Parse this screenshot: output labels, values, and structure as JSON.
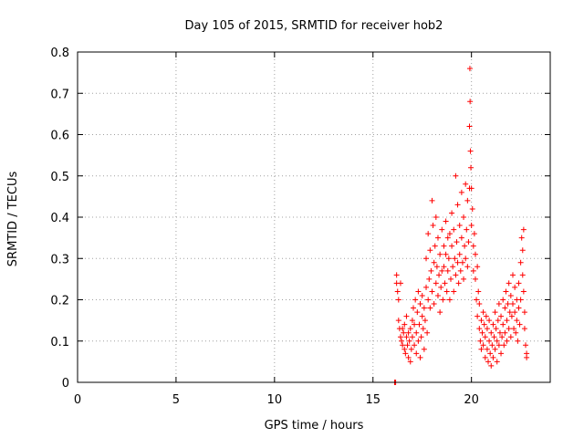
{
  "chart_data": {
    "type": "scatter",
    "title": "Day 105 of 2015, SRMTID for receiver hob2",
    "xlabel": "GPS time / hours",
    "ylabel": "SRMTID / TECUs",
    "xlim": [
      0,
      24
    ],
    "ylim": [
      0,
      0.8
    ],
    "xticks": [
      "0",
      "5",
      "10",
      "15",
      "20"
    ],
    "yticks": [
      "0",
      "0.1",
      "0.2",
      "0.3",
      "0.4",
      "0.5",
      "0.6",
      "0.7",
      "0.8"
    ],
    "grid": true,
    "marker": "+",
    "color": "#ff0000",
    "series": [
      {
        "name": "SRMTID",
        "points": [
          [
            16.1,
            0.0
          ],
          [
            16.15,
            0.0
          ],
          [
            16.2,
            0.24
          ],
          [
            16.2,
            0.26
          ],
          [
            16.25,
            0.22
          ],
          [
            16.3,
            0.2
          ],
          [
            16.3,
            0.15
          ],
          [
            16.35,
            0.13
          ],
          [
            16.4,
            0.24
          ],
          [
            16.4,
            0.11
          ],
          [
            16.45,
            0.1
          ],
          [
            16.5,
            0.13
          ],
          [
            16.5,
            0.09
          ],
          [
            16.55,
            0.12
          ],
          [
            16.6,
            0.08
          ],
          [
            16.6,
            0.14
          ],
          [
            16.65,
            0.07
          ],
          [
            16.7,
            0.11
          ],
          [
            16.7,
            0.16
          ],
          [
            16.75,
            0.09
          ],
          [
            16.8,
            0.06
          ],
          [
            16.8,
            0.12
          ],
          [
            16.85,
            0.1
          ],
          [
            16.9,
            0.05
          ],
          [
            16.9,
            0.13
          ],
          [
            16.95,
            0.08
          ],
          [
            17.0,
            0.15
          ],
          [
            17.0,
            0.11
          ],
          [
            17.05,
            0.18
          ],
          [
            17.1,
            0.09
          ],
          [
            17.1,
            0.14
          ],
          [
            17.15,
            0.2
          ],
          [
            17.2,
            0.12
          ],
          [
            17.2,
            0.07
          ],
          [
            17.25,
            0.17
          ],
          [
            17.3,
            0.1
          ],
          [
            17.3,
            0.22
          ],
          [
            17.35,
            0.14
          ],
          [
            17.4,
            0.06
          ],
          [
            17.4,
            0.19
          ],
          [
            17.45,
            0.11
          ],
          [
            17.5,
            0.16
          ],
          [
            17.5,
            0.21
          ],
          [
            17.55,
            0.13
          ],
          [
            17.6,
            0.08
          ],
          [
            17.6,
            0.18
          ],
          [
            17.65,
            0.15
          ],
          [
            17.7,
            0.23
          ],
          [
            17.7,
            0.3
          ],
          [
            17.75,
            0.12
          ],
          [
            17.8,
            0.2
          ],
          [
            17.8,
            0.36
          ],
          [
            17.85,
            0.25
          ],
          [
            17.9,
            0.18
          ],
          [
            17.9,
            0.32
          ],
          [
            17.95,
            0.27
          ],
          [
            18.0,
            0.44
          ],
          [
            18.0,
            0.22
          ],
          [
            18.05,
            0.38
          ],
          [
            18.1,
            0.29
          ],
          [
            18.1,
            0.19
          ],
          [
            18.15,
            0.33
          ],
          [
            18.2,
            0.24
          ],
          [
            18.2,
            0.4
          ],
          [
            18.25,
            0.28
          ],
          [
            18.3,
            0.21
          ],
          [
            18.3,
            0.35
          ],
          [
            18.35,
            0.26
          ],
          [
            18.4,
            0.31
          ],
          [
            18.4,
            0.17
          ],
          [
            18.45,
            0.23
          ],
          [
            18.5,
            0.37
          ],
          [
            18.5,
            0.27
          ],
          [
            18.55,
            0.2
          ],
          [
            18.6,
            0.33
          ],
          [
            18.6,
            0.28
          ],
          [
            18.65,
            0.24
          ],
          [
            18.7,
            0.39
          ],
          [
            18.7,
            0.31
          ],
          [
            18.75,
            0.22
          ],
          [
            18.8,
            0.35
          ],
          [
            18.8,
            0.27
          ],
          [
            18.85,
            0.3
          ],
          [
            18.9,
            0.2
          ],
          [
            18.9,
            0.36
          ],
          [
            18.95,
            0.25
          ],
          [
            19.0,
            0.33
          ],
          [
            19.0,
            0.41
          ],
          [
            19.05,
            0.28
          ],
          [
            19.1,
            0.22
          ],
          [
            19.1,
            0.37
          ],
          [
            19.15,
            0.3
          ],
          [
            19.2,
            0.5
          ],
          [
            19.2,
            0.26
          ],
          [
            19.25,
            0.34
          ],
          [
            19.3,
            0.29
          ],
          [
            19.3,
            0.43
          ],
          [
            19.35,
            0.24
          ],
          [
            19.4,
            0.38
          ],
          [
            19.4,
            0.31
          ],
          [
            19.45,
            0.27
          ],
          [
            19.5,
            0.46
          ],
          [
            19.5,
            0.35
          ],
          [
            19.55,
            0.29
          ],
          [
            19.6,
            0.4
          ],
          [
            19.6,
            0.25
          ],
          [
            19.65,
            0.33
          ],
          [
            19.7,
            0.48
          ],
          [
            19.7,
            0.3
          ],
          [
            19.75,
            0.37
          ],
          [
            19.8,
            0.28
          ],
          [
            19.8,
            0.44
          ],
          [
            19.85,
            0.34
          ],
          [
            19.9,
            0.47
          ],
          [
            19.9,
            0.62
          ],
          [
            19.92,
            0.76
          ],
          [
            19.93,
            0.68
          ],
          [
            19.95,
            0.56
          ],
          [
            19.97,
            0.52
          ],
          [
            20.0,
            0.47
          ],
          [
            20.0,
            0.38
          ],
          [
            20.05,
            0.42
          ],
          [
            20.1,
            0.33
          ],
          [
            20.1,
            0.27
          ],
          [
            20.15,
            0.36
          ],
          [
            20.2,
            0.25
          ],
          [
            20.2,
            0.31
          ],
          [
            20.25,
            0.2
          ],
          [
            20.3,
            0.28
          ],
          [
            20.3,
            0.16
          ],
          [
            20.35,
            0.22
          ],
          [
            20.4,
            0.13
          ],
          [
            20.4,
            0.19
          ],
          [
            20.45,
            0.1
          ],
          [
            20.5,
            0.15
          ],
          [
            20.5,
            0.08
          ],
          [
            20.55,
            0.12
          ],
          [
            20.6,
            0.17
          ],
          [
            20.6,
            0.09
          ],
          [
            20.65,
            0.14
          ],
          [
            20.7,
            0.06
          ],
          [
            20.7,
            0.11
          ],
          [
            20.75,
            0.16
          ],
          [
            20.8,
            0.08
          ],
          [
            20.8,
            0.13
          ],
          [
            20.85,
            0.05
          ],
          [
            20.9,
            0.1
          ],
          [
            20.9,
            0.15
          ],
          [
            20.95,
            0.07
          ],
          [
            21.0,
            0.12
          ],
          [
            21.0,
            0.04
          ],
          [
            21.05,
            0.09
          ],
          [
            21.1,
            0.14
          ],
          [
            21.1,
            0.06
          ],
          [
            21.15,
            0.11
          ],
          [
            21.2,
            0.17
          ],
          [
            21.2,
            0.08
          ],
          [
            21.25,
            0.13
          ],
          [
            21.3,
            0.05
          ],
          [
            21.3,
            0.1
          ],
          [
            21.35,
            0.15
          ],
          [
            21.4,
            0.09
          ],
          [
            21.4,
            0.19
          ],
          [
            21.45,
            0.12
          ],
          [
            21.5,
            0.07
          ],
          [
            21.5,
            0.16
          ],
          [
            21.55,
            0.11
          ],
          [
            21.6,
            0.2
          ],
          [
            21.6,
            0.14
          ],
          [
            21.65,
            0.09
          ],
          [
            21.7,
            0.18
          ],
          [
            21.7,
            0.12
          ],
          [
            21.75,
            0.22
          ],
          [
            21.8,
            0.15
          ],
          [
            21.8,
            0.1
          ],
          [
            21.85,
            0.19
          ],
          [
            21.9,
            0.13
          ],
          [
            21.9,
            0.24
          ],
          [
            21.95,
            0.17
          ],
          [
            22.0,
            0.21
          ],
          [
            22.0,
            0.11
          ],
          [
            22.05,
            0.16
          ],
          [
            22.1,
            0.26
          ],
          [
            22.1,
            0.19
          ],
          [
            22.15,
            0.13
          ],
          [
            22.2,
            0.23
          ],
          [
            22.2,
            0.17
          ],
          [
            22.25,
            0.12
          ],
          [
            22.3,
            0.2
          ],
          [
            22.3,
            0.15
          ],
          [
            22.35,
            0.1
          ],
          [
            22.4,
            0.18
          ],
          [
            22.4,
            0.24
          ],
          [
            22.45,
            0.14
          ],
          [
            22.5,
            0.29
          ],
          [
            22.5,
            0.2
          ],
          [
            22.55,
            0.35
          ],
          [
            22.6,
            0.32
          ],
          [
            22.6,
            0.26
          ],
          [
            22.65,
            0.37
          ],
          [
            22.65,
            0.22
          ],
          [
            22.7,
            0.17
          ],
          [
            22.7,
            0.13
          ],
          [
            22.75,
            0.09
          ],
          [
            22.8,
            0.07
          ],
          [
            22.8,
            0.06
          ]
        ]
      }
    ]
  }
}
